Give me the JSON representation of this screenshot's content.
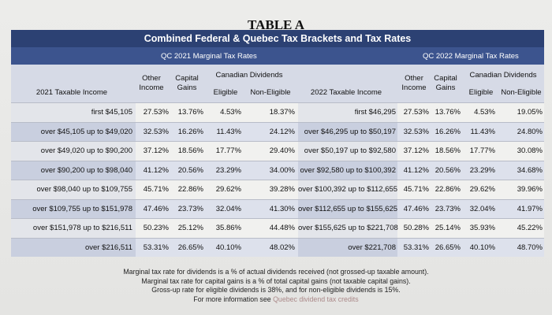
{
  "title": "TABLE A",
  "banner": "Combined Federal & Quebec Tax Brackets and Tax Rates",
  "sub_2021": "QC 2021 Marginal Tax Rates",
  "sub_2022": "QC 2022 Marginal Tax Rates",
  "headers": {
    "income_2021": "2021 Taxable Income",
    "other_income": "Other Income",
    "capital_gains": "Capital Gains",
    "canadian_dividends": "Canadian Dividends",
    "eligible": "Eligible",
    "non_eligible": "Non-Eligible",
    "income_2022": "2022 Taxable Income"
  },
  "rows": [
    {
      "b21": "first $45,105",
      "o21": "27.53%",
      "c21": "13.76%",
      "e21": "4.53%",
      "n21": "18.37%",
      "b22": "first $46,295",
      "o22": "27.53%",
      "c22": "13.76%",
      "e22": "4.53%",
      "n22": "19.05%"
    },
    {
      "b21": "over $45,105 up to $49,020",
      "o21": "32.53%",
      "c21": "16.26%",
      "e21": "11.43%",
      "n21": "24.12%",
      "b22": "over $46,295 up to $50,197",
      "o22": "32.53%",
      "c22": "16.26%",
      "e22": "11.43%",
      "n22": "24.80%"
    },
    {
      "b21": "over $49,020 up to $90,200",
      "o21": "37.12%",
      "c21": "18.56%",
      "e21": "17.77%",
      "n21": "29.40%",
      "b22": "over $50,197 up to $92,580",
      "o22": "37.12%",
      "c22": "18.56%",
      "e22": "17.77%",
      "n22": "30.08%"
    },
    {
      "b21": "over $90,200 up to $98,040",
      "o21": "41.12%",
      "c21": "20.56%",
      "e21": "23.29%",
      "n21": "34.00%",
      "b22": "over $92,580 up to $100,392",
      "o22": "41.12%",
      "c22": "20.56%",
      "e22": "23.29%",
      "n22": "34.68%"
    },
    {
      "b21": "over $98,040 up to $109,755",
      "o21": "45.71%",
      "c21": "22.86%",
      "e21": "29.62%",
      "n21": "39.28%",
      "b22": "over $100,392 up to $112,655",
      "o22": "45.71%",
      "c22": "22.86%",
      "e22": "29.62%",
      "n22": "39.96%"
    },
    {
      "b21": "over $109,755 up to $151,978",
      "o21": "47.46%",
      "c21": "23.73%",
      "e21": "32.04%",
      "n21": "41.30%",
      "b22": "over $112,655 up to $155,625",
      "o22": "47.46%",
      "c22": "23.73%",
      "e22": "32.04%",
      "n22": "41.97%"
    },
    {
      "b21": "over $151,978 up to $216,511",
      "o21": "50.23%",
      "c21": "25.12%",
      "e21": "35.86%",
      "n21": "44.48%",
      "b22": "over $155,625 up to $221,708",
      "o22": "50.28%",
      "c22": "25.14%",
      "e22": "35.93%",
      "n22": "45.22%"
    },
    {
      "b21": "over $216,511",
      "o21": "53.31%",
      "c21": "26.65%",
      "e21": "40.10%",
      "n21": "48.02%",
      "b22": "over $221,708",
      "o22": "53.31%",
      "c22": "26.65%",
      "e22": "40.10%",
      "n22": "48.70%"
    }
  ],
  "notes": {
    "line1": "Marginal tax rate for dividends is a % of actual dividends received (not grossed-up taxable amount).",
    "line2": "Marginal tax rate for capital gains is a % of total capital gains (not taxable capital gains).",
    "line3": "Gross-up rate for eligible dividends is 38%, and for non-eligible dividends is 15%.",
    "line4_prefix": "For more information see",
    "line4_link": "Quebec dividend tax credits"
  },
  "colors": {
    "banner": "#2c4173",
    "subhead": "#3c548e",
    "header_bg": "#d6dae6",
    "row_alt": "#dde1ec"
  }
}
